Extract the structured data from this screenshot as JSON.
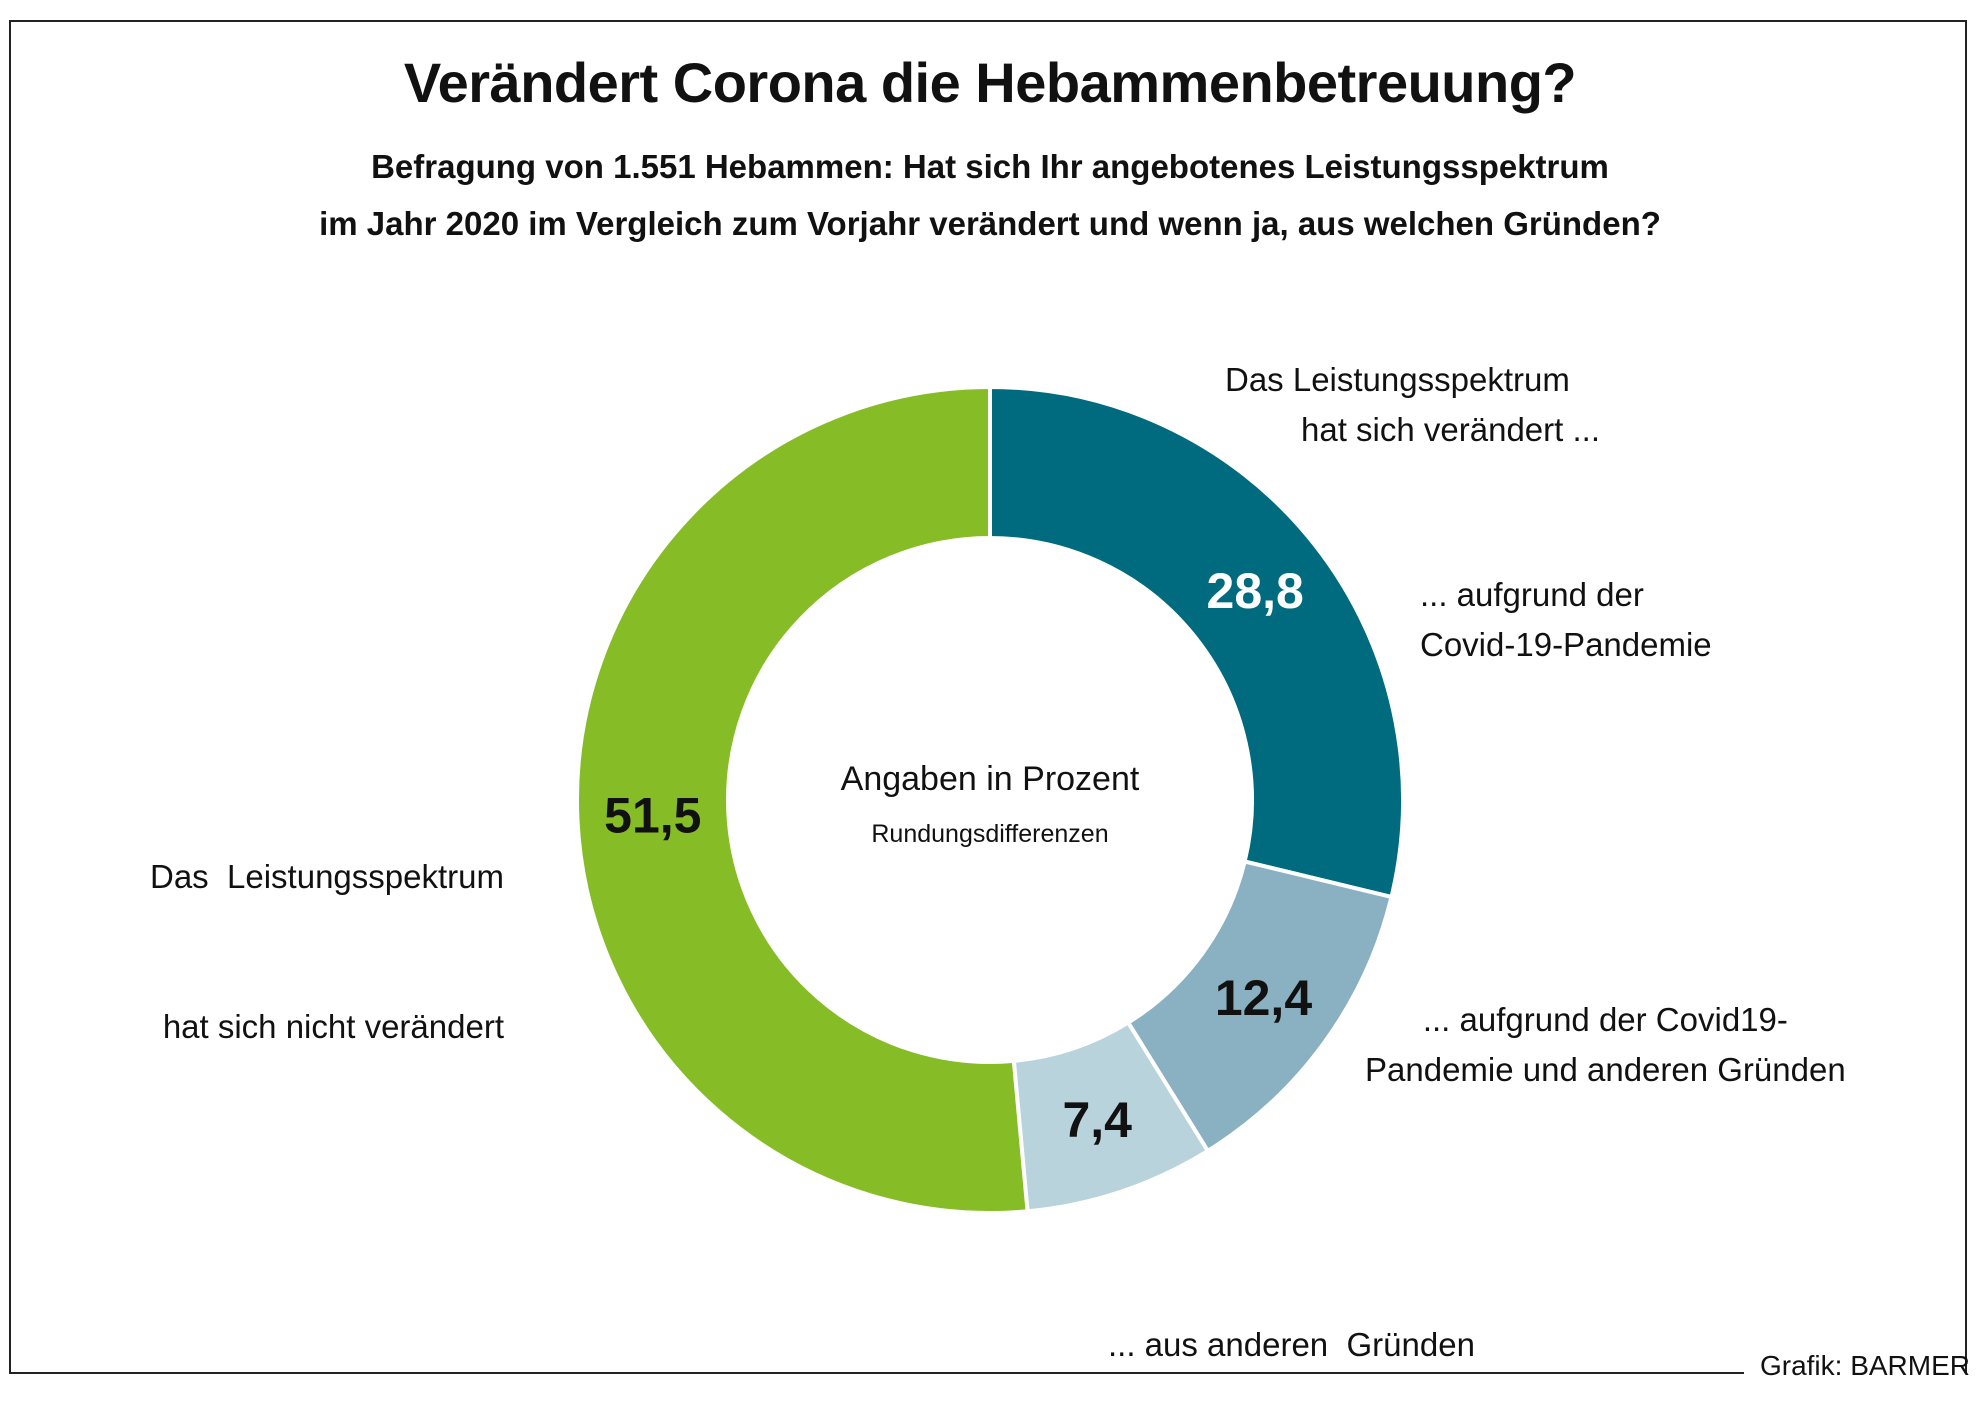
{
  "title": "Verändert Corona die Hebammenbetreuung?",
  "subtitle_lines": [
    "Befragung von 1.551 Hebammen: Hat sich Ihr angebotenes Leistungsspektrum",
    "im Jahr 2020 im Vergleich zum Vorjahr verändert und wenn ja, aus welchen Gründen?"
  ],
  "center_note": {
    "main": "Angaben in Prozent",
    "sub": "Rundungsdifferenzen"
  },
  "group_label": [
    "Das Leistungsspektrum",
    "hat sich verändert ..."
  ],
  "credit": "Grafik: BARMER",
  "chart_data": {
    "type": "pie",
    "variant": "donut",
    "title": "Verändert Corona die Hebammenbetreuung?",
    "unit": "%",
    "slices": [
      {
        "label": "... aufgrund der Covid-19-Pandemie",
        "label_lines": [
          "... aufgrund der",
          "Covid-19-Pandemie"
        ],
        "value": 28.8,
        "display": "28,8",
        "color": "#006b7f",
        "text_color": "#ffffff"
      },
      {
        "label": "... aufgrund der Covid19-Pandemie und anderen Gründen",
        "label_lines": [
          "... aufgrund der Covid19-",
          "Pandemie und anderen Gründen"
        ],
        "value": 12.4,
        "display": "12,4",
        "color": "#8ab1c1",
        "text_color": "#111111"
      },
      {
        "label": "... aus anderen Gründen",
        "label_lines": [
          "... aus anderen  Gründen"
        ],
        "value": 7.4,
        "display": "7,4",
        "color": "#b9d3dd",
        "text_color": "#111111"
      },
      {
        "label": "Das Leistungsspektrum hat sich nicht verändert",
        "label_lines": [
          "Das  Leistungsspektrum",
          "hat sich nicht verändert"
        ],
        "value": 51.5,
        "display": "51,5",
        "color": "#86bc25",
        "text_color": "#111111"
      }
    ],
    "start": "top",
    "direction": "clockwise",
    "legend": "none"
  }
}
